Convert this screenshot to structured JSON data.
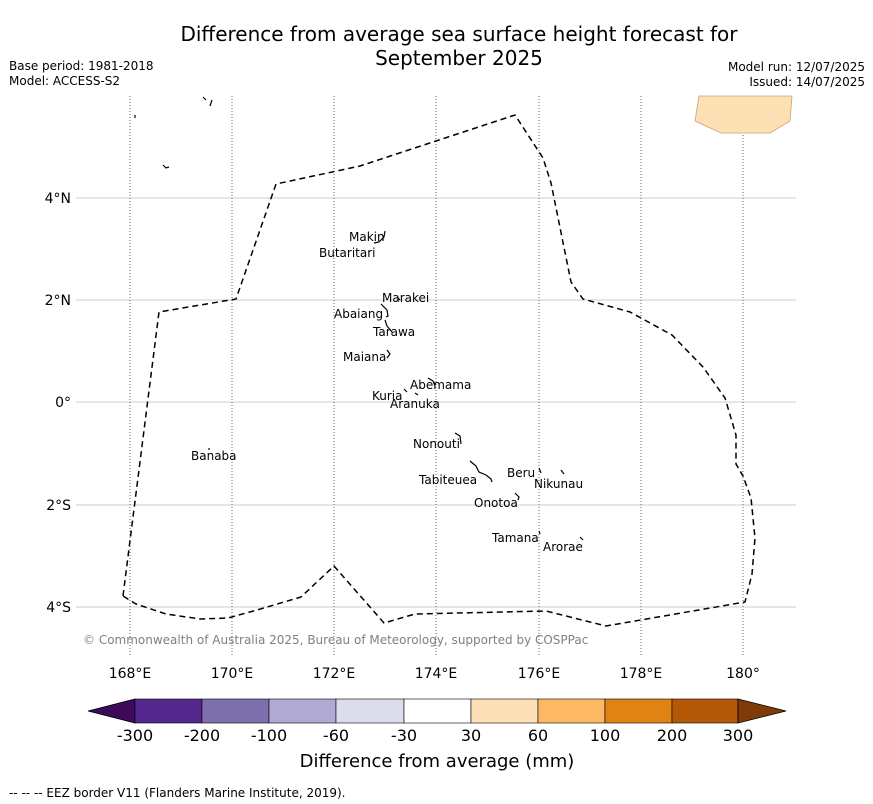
{
  "header": {
    "title_line1": "Difference from average sea surface height forecast for",
    "title_line2": "September 2025",
    "base_period": "Base period: 1981-2018",
    "model": "Model: ACCESS-S2",
    "model_run": "Model run: 12/07/2025",
    "issued": "Issued: 14/07/2025"
  },
  "map": {
    "lon_ticks": [
      "168°E",
      "170°E",
      "172°E",
      "174°E",
      "176°E",
      "178°E",
      "180°"
    ],
    "lat_ticks": [
      "4°N",
      "2°N",
      "0°",
      "2°S",
      "4°S"
    ],
    "copyright": "© Commonwealth of Australia 2025, Bureau of Meteorology, supported by COSPPac",
    "islands": {
      "makin": "Makin",
      "butaritari": "Butaritari",
      "marakei": "Marakei",
      "abaiang": "Abaiang",
      "tarawa": "Tarawa",
      "maiana": "Maiana",
      "abemama": "Abemama",
      "kuria": "Kuria",
      "aranuka": "Aranuka",
      "nonouti": "Nonouti",
      "banaba": "Banaba",
      "beru": "Beru",
      "nikunau": "Nikunau",
      "tabiteuea": "Tabiteuea",
      "onotoa": "Onotoa",
      "tamana": "Tamana",
      "arorae": "Arorae"
    },
    "colors": {
      "land_patch": "#fde0b4",
      "grid": "#cccccc",
      "eez_border": "#000000"
    }
  },
  "colorbar": {
    "ticks": [
      "-300",
      "-200",
      "-100",
      "-60",
      "-30",
      "30",
      "60",
      "100",
      "200",
      "300"
    ],
    "colors": [
      "#3d0a5c",
      "#54278f",
      "#7e70ad",
      "#b0a9d3",
      "#dcdcec",
      "#ffffff",
      "#fee0b6",
      "#fdb863",
      "#e08214",
      "#b35806",
      "#7f3b08"
    ],
    "label": "Difference from average (mm)"
  },
  "footnote": "--  --  -- EEZ border V11 (Flanders Marine Institute, 2019)."
}
